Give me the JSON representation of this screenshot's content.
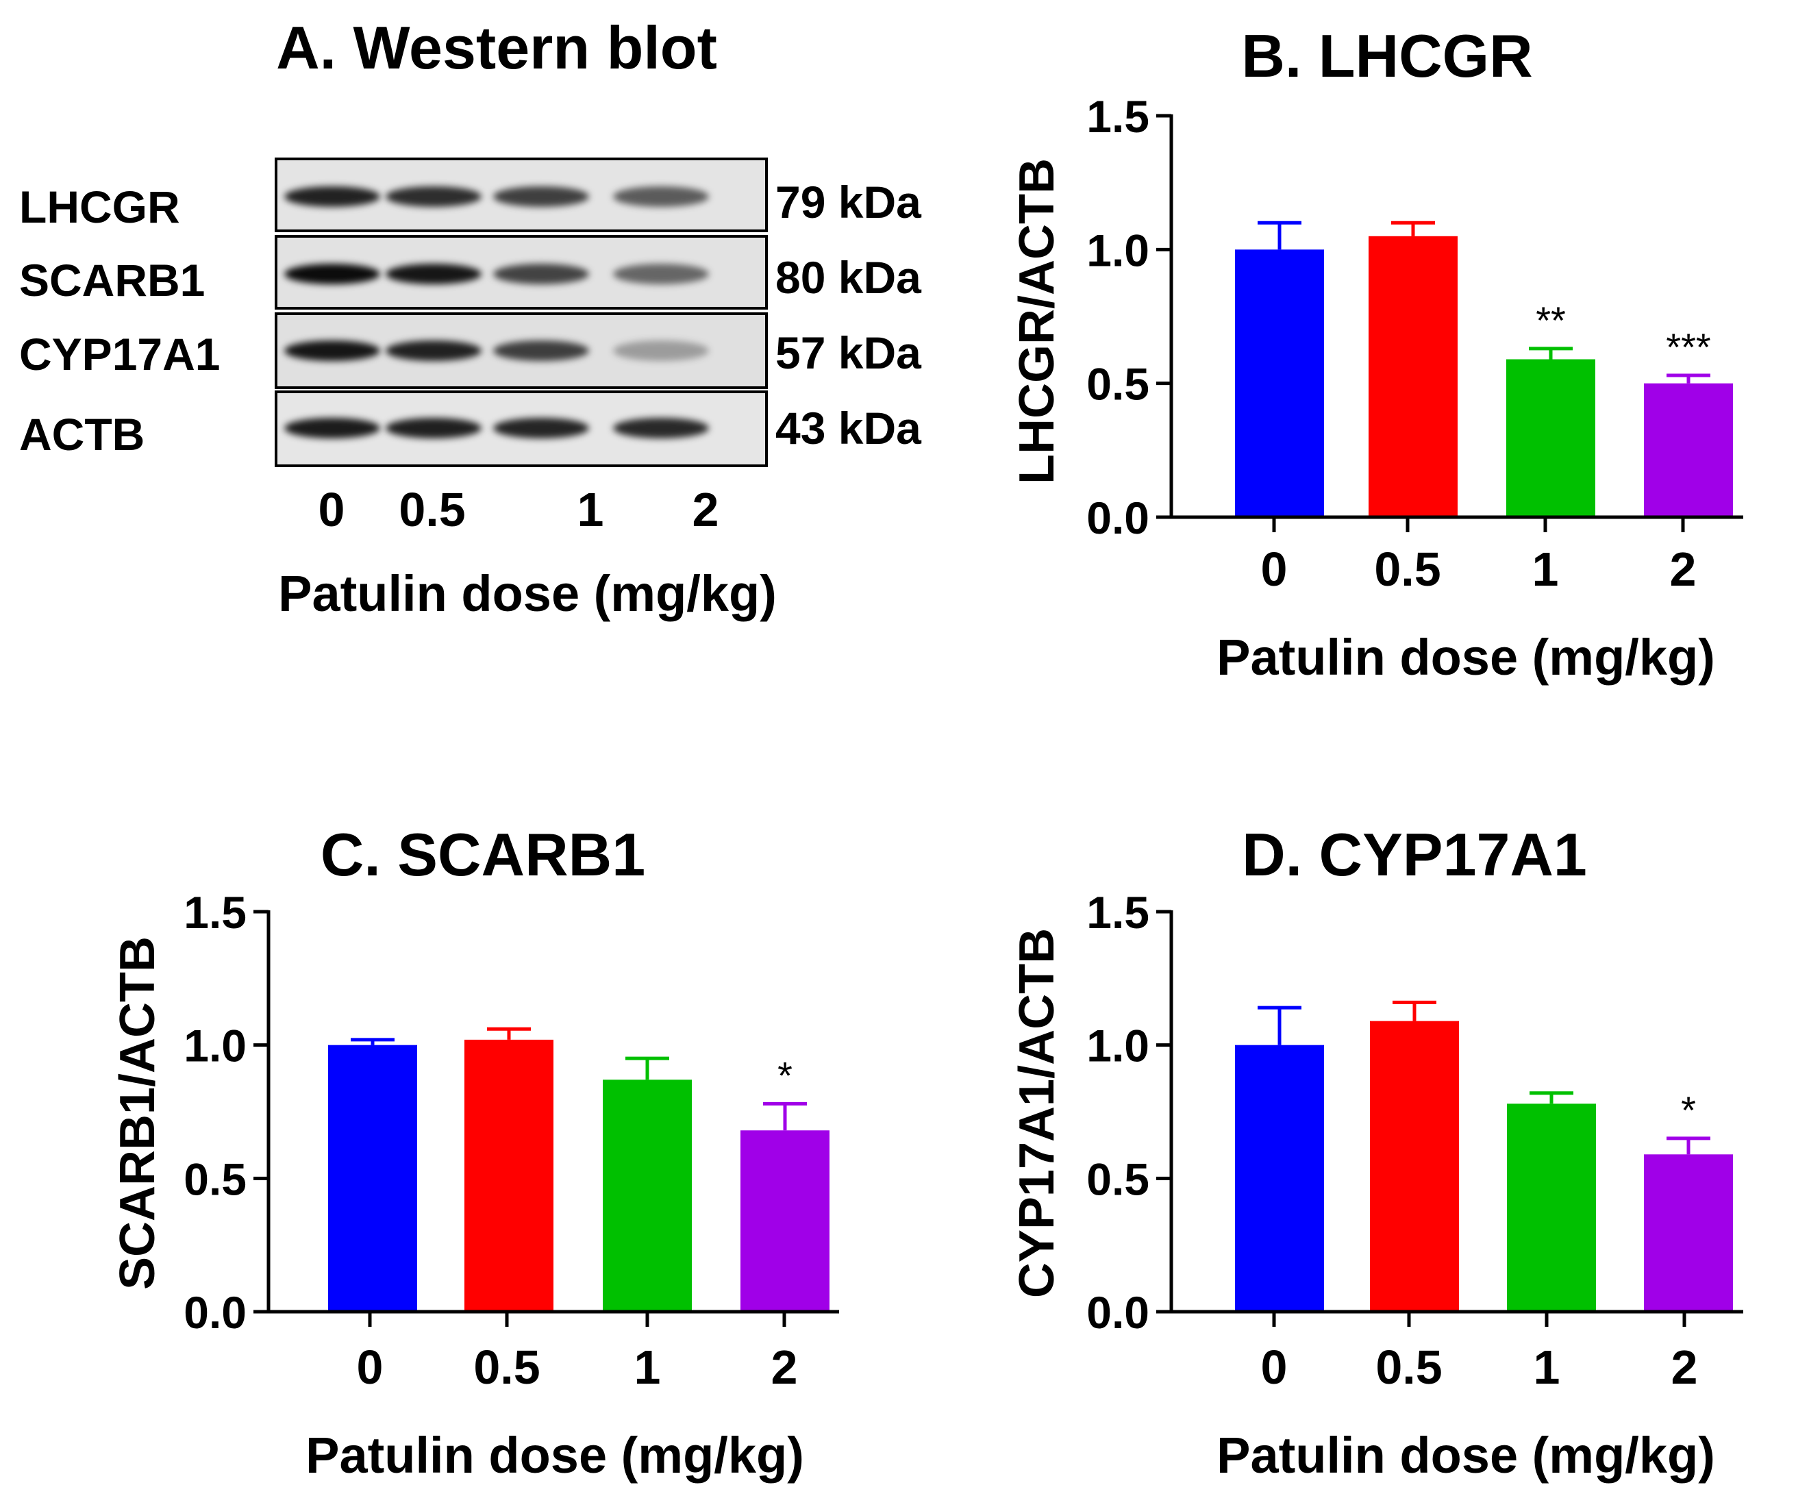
{
  "colors": {
    "dose0": "#0000ff",
    "dose05": "#ff0000",
    "dose1": "#00c000",
    "dose2": "#a000e8",
    "axis": "#000000"
  },
  "western_blot": {
    "title": "A. Western blot",
    "proteins": [
      "LHCGR",
      "SCARB1",
      "CYP17A1",
      "ACTB"
    ],
    "sizes": [
      "79 kDa",
      "80 kDa",
      "57 kDa",
      "43 kDa"
    ],
    "lanes": [
      "0",
      "0.5",
      "1",
      "2"
    ],
    "xlabel": "Patulin dose (mg/kg)"
  },
  "chart_data": [
    {
      "type": "bar",
      "title": "B. LHCGR",
      "xlabel": "Patulin dose  (mg/kg)",
      "ylabel": "LHCGR/ACTB",
      "categories": [
        "0",
        "0.5",
        "1",
        "2"
      ],
      "values": [
        1.0,
        1.05,
        0.59,
        0.5
      ],
      "errors": [
        0.1,
        0.05,
        0.04,
        0.03
      ],
      "significance": [
        "",
        "",
        "**",
        "***"
      ],
      "ylim": [
        0,
        1.5
      ],
      "yticks": [
        "0.0",
        "0.5",
        "1.0",
        "1.5"
      ]
    },
    {
      "type": "bar",
      "title": "C. SCARB1",
      "xlabel": "Patulin dose  (mg/kg)",
      "ylabel": "SCARB1/ACTB",
      "categories": [
        "0",
        "0.5",
        "1",
        "2"
      ],
      "values": [
        1.0,
        1.02,
        0.87,
        0.68
      ],
      "errors": [
        0.02,
        0.04,
        0.08,
        0.1
      ],
      "significance": [
        "",
        "",
        "",
        "*"
      ],
      "ylim": [
        0,
        1.5
      ],
      "yticks": [
        "0.0",
        "0.5",
        "1.0",
        "1.5"
      ]
    },
    {
      "type": "bar",
      "title": "D. CYP17A1",
      "xlabel": "Patulin dose  (mg/kg)",
      "ylabel": "CYP17A1/ACTB",
      "categories": [
        "0",
        "0.5",
        "1",
        "2"
      ],
      "values": [
        1.0,
        1.09,
        0.78,
        0.59
      ],
      "errors": [
        0.14,
        0.07,
        0.04,
        0.06
      ],
      "significance": [
        "",
        "",
        "",
        "*"
      ],
      "ylim": [
        0,
        1.5
      ],
      "yticks": [
        "0.0",
        "0.5",
        "1.0",
        "1.5"
      ]
    }
  ]
}
